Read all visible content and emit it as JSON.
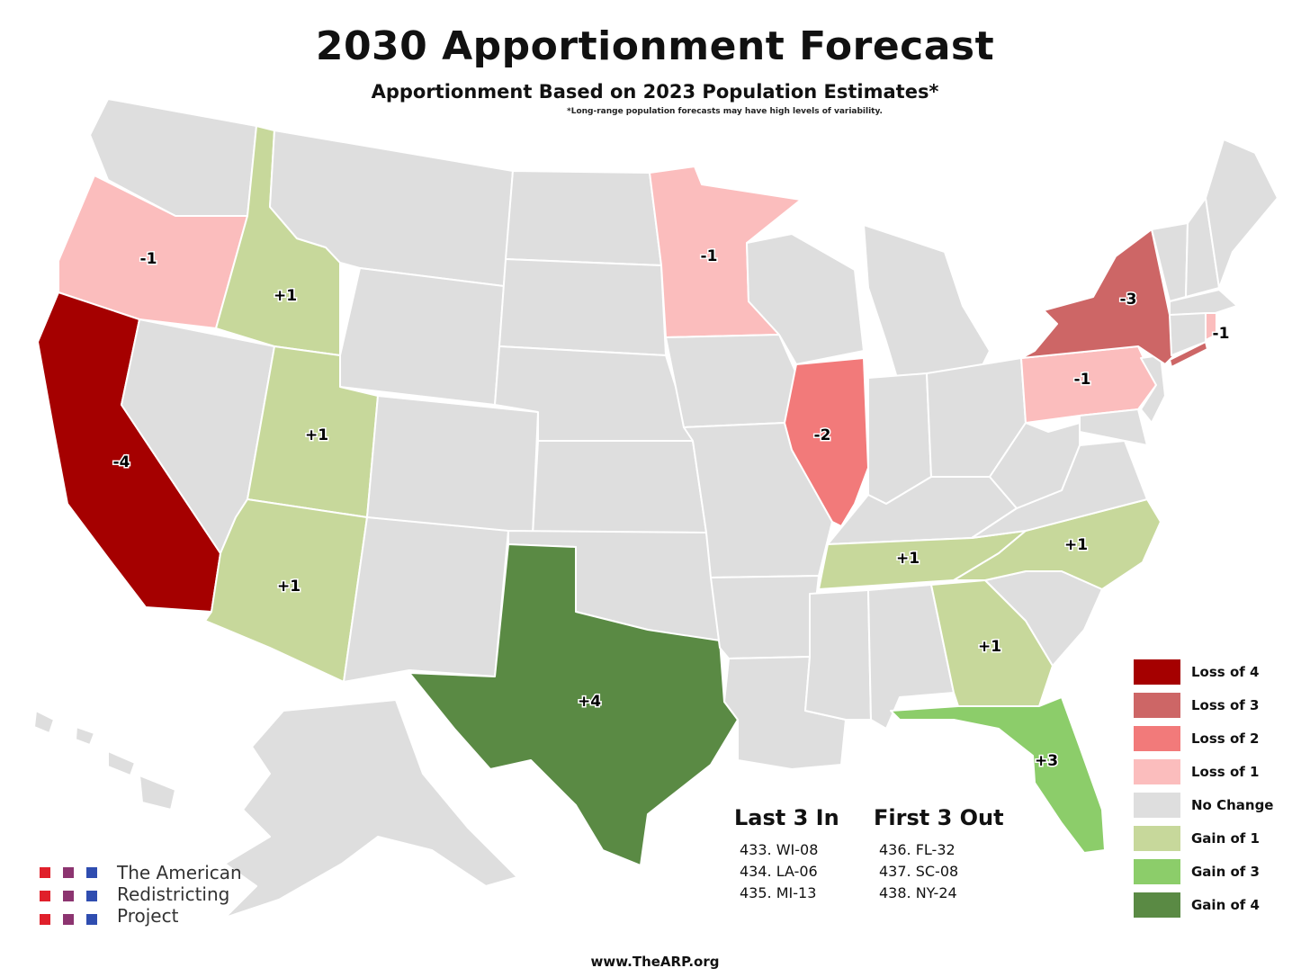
{
  "title": "2030 Apportionment Forecast",
  "subtitle": "Apportionment Based on 2023 Population Estimates*",
  "footnote": "*Long-range population forecasts may have high levels of variability.",
  "colors": {
    "loss4": "#a50000",
    "loss3": "#cd6666",
    "loss2": "#f27a7a",
    "loss1": "#fbbdbd",
    "none": "#dedede",
    "gain1": "#c7d89b",
    "gain3": "#8ccd6a",
    "gain4": "#5a8a44"
  },
  "states": {
    "oregon": "-1",
    "california": "-4",
    "idaho": "+1",
    "utah": "+1",
    "arizona": "+1",
    "texas": "+4",
    "minnesota": "-1",
    "illinois": "-2",
    "new_york": "-3",
    "pennsylvania": "-1",
    "rhode_island": "-1",
    "tennessee": "+1",
    "north_carolina": "+1",
    "georgia": "+1",
    "florida": "+3"
  },
  "legend": [
    {
      "label": "Loss of 4",
      "color": "#a50000"
    },
    {
      "label": "Loss of 3",
      "color": "#cd6666"
    },
    {
      "label": "Loss of 2",
      "color": "#f27a7a"
    },
    {
      "label": "Loss of 1",
      "color": "#fbbdbd"
    },
    {
      "label": "No Change",
      "color": "#dedede"
    },
    {
      "label": "Gain of 1",
      "color": "#c7d89b"
    },
    {
      "label": "Gain of 3",
      "color": "#8ccd6a"
    },
    {
      "label": "Gain of 4",
      "color": "#5a8a44"
    }
  ],
  "last_in": {
    "heading": "Last 3 In",
    "entries": [
      "433. WI-08",
      "434. LA-06",
      "435. MI-13"
    ]
  },
  "first_out": {
    "heading": "First 3 Out",
    "entries": [
      "436. FL-32",
      "437. SC-08",
      "438. NY-24"
    ]
  },
  "logo": {
    "line1": "The American",
    "line2": "Redistricting",
    "line3": "Project",
    "colors": [
      "#e0202b",
      "#8c3470",
      "#2f4db0"
    ]
  },
  "website": "www.TheARP.org"
}
